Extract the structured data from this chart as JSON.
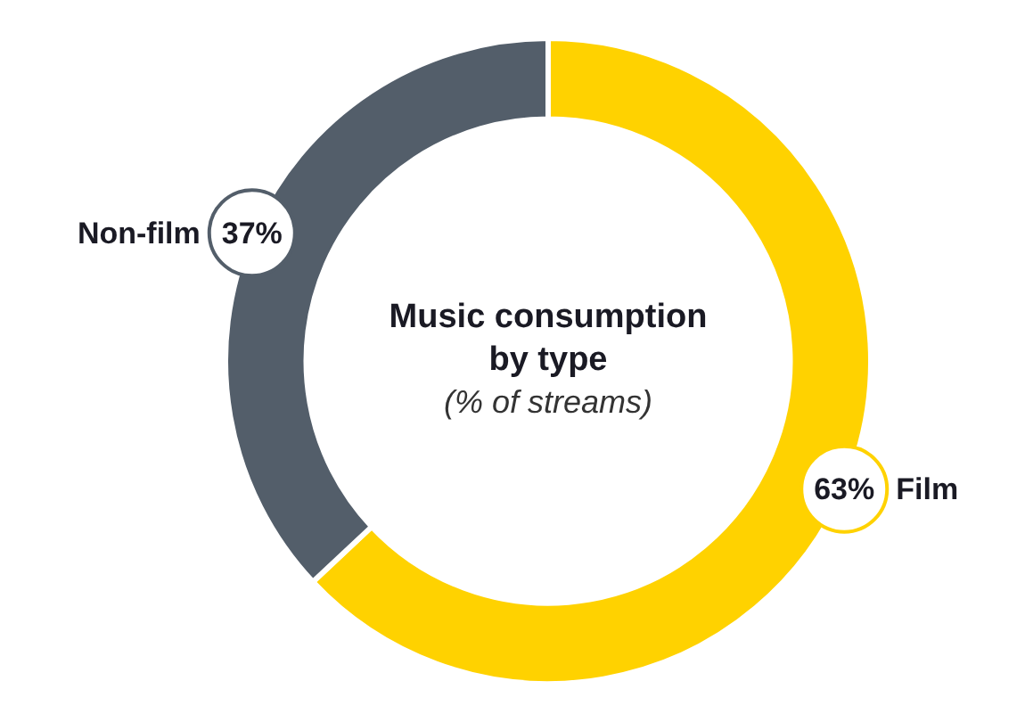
{
  "chart_data": {
    "type": "donut",
    "title": "Music consumption by type",
    "subtitle": "(% of streams)",
    "categories": [
      "Film",
      "Non-film"
    ],
    "values": [
      63,
      37
    ],
    "colors": [
      "#ffd200",
      "#535e6a"
    ],
    "value_labels": [
      "63%",
      "37%"
    ],
    "legend": false
  }
}
